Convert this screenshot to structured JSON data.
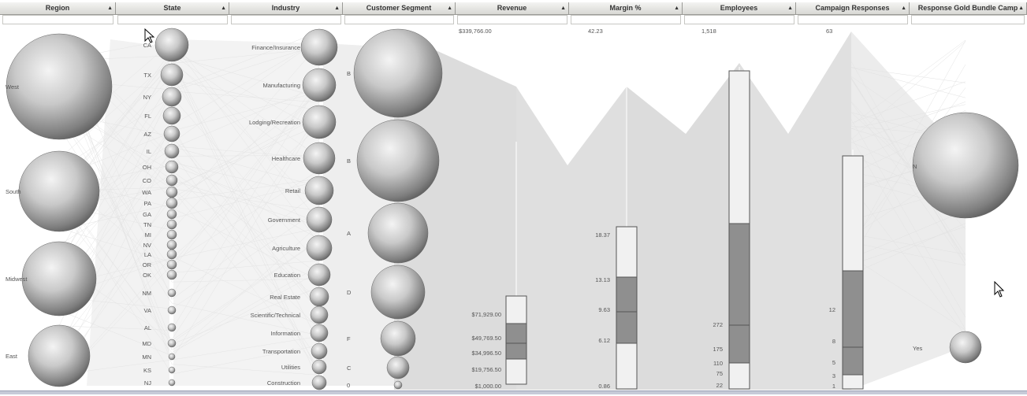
{
  "columns": [
    {
      "label": "Region",
      "sort": "▲"
    },
    {
      "label": "State",
      "sort": "▲"
    },
    {
      "label": "Industry",
      "sort": "▲"
    },
    {
      "label": "Customer Segment",
      "sort": "▲"
    },
    {
      "label": "Revenue",
      "sort": "▲"
    },
    {
      "label": "Margin %",
      "sort": "▲"
    },
    {
      "label": "Employees",
      "sort": "▲"
    },
    {
      "label": "Campaign Responses",
      "sort": "▲"
    },
    {
      "label": "Response Gold Bundle Camp",
      "sort": "▲"
    }
  ],
  "axis_max": {
    "revenue": "$339,766.00",
    "margin": "42.23",
    "employees": "1,518",
    "campaign": "63"
  },
  "regions": [
    "West",
    "South",
    "Midwest",
    "East"
  ],
  "states": [
    "CA",
    "TX",
    "NY",
    "FL",
    "AZ",
    "IL",
    "OH",
    "CO",
    "WA",
    "PA",
    "GA",
    "TN",
    "MI",
    "NV",
    "LA",
    "OR",
    "OK",
    "NM",
    "VA",
    "AL",
    "MD",
    "MN",
    "KS",
    "NJ"
  ],
  "industries": [
    "Finance/Insurance",
    "Manufacturing",
    "Lodging/Recreation",
    "Healthcare",
    "Retail",
    "Government",
    "Agriculture",
    "Education",
    "Real Estate",
    "Scientific/Technical",
    "Information",
    "Transportation",
    "Utilities",
    "Construction"
  ],
  "segments": [
    "B",
    "B",
    "A",
    "D",
    "F",
    "C",
    "0"
  ],
  "revenue_ticks": [
    "$71,929.00",
    "$49,769.50",
    "$34,996.50",
    "$19,756.50",
    "$1,000.00"
  ],
  "margin_ticks": [
    "18.37",
    "13.13",
    "9.63",
    "6.12",
    "0.86"
  ],
  "employee_ticks": [
    "272",
    "175",
    "110",
    "75",
    "22"
  ],
  "campaign_ticks": [
    "12",
    "8",
    "5",
    "3",
    "1"
  ],
  "response": [
    "N",
    "Yes"
  ],
  "colors": {
    "header": "#d8d8d4",
    "bubble_light": "#f2f2f2",
    "bubble_dark": "#6e6e6e",
    "box_fill": "#8f8f8f",
    "lines": "#d6d6d6"
  }
}
